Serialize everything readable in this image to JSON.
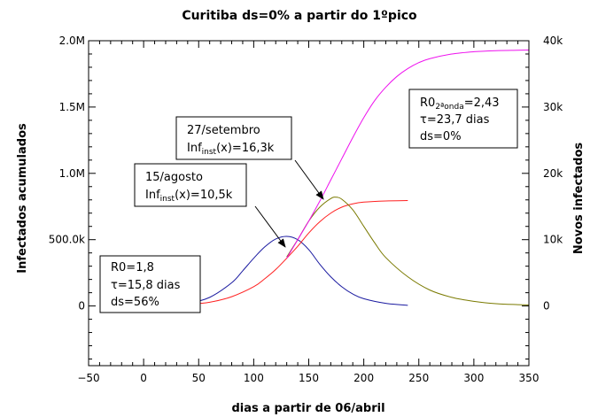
{
  "chart_data": {
    "type": "line",
    "title": "Curitiba ds=0% a partir do 1ºpico",
    "xlabel": "dias a partir de 06/abril",
    "ylabel_left": "Infectados acumulados",
    "ylabel_right": "Novos infectados",
    "xlim": [
      -50,
      350
    ],
    "ylim_left": [
      -450000,
      2000000
    ],
    "ylim_right": [
      -9000,
      40000
    ],
    "xticks": [
      -50,
      0,
      50,
      100,
      150,
      200,
      250,
      300,
      350
    ],
    "xtick_labels": [
      "−50",
      "0",
      "50",
      "100",
      "150",
      "200",
      "250",
      "300",
      "350"
    ],
    "yticks_left": [
      0,
      500000,
      1000000,
      1500000,
      2000000
    ],
    "ytick_labels_left": [
      "0",
      "500.0k",
      "1.0M",
      "1.5M",
      "2.0M"
    ],
    "yticks_right": [
      0,
      10000,
      20000,
      30000,
      40000
    ],
    "ytick_labels_right": [
      "0",
      "10k",
      "20k",
      "30k",
      "40k"
    ],
    "grid": false,
    "legend": "none",
    "series": [
      {
        "color": "#1a1aa0",
        "axis": "right",
        "x": [
          0,
          20,
          40,
          60,
          80,
          90,
          100,
          110,
          120,
          130,
          140,
          150,
          160,
          170,
          180,
          190,
          200,
          220,
          240
        ],
        "y": [
          0,
          100,
          400,
          1300,
          3500,
          5300,
          7200,
          8900,
          10100,
          10500,
          10000,
          8500,
          6300,
          4400,
          2900,
          1800,
          1100,
          400,
          100
        ]
      },
      {
        "color": "#ff2020",
        "axis": "left",
        "x": [
          0,
          20,
          40,
          60,
          80,
          100,
          110,
          120,
          130,
          140,
          150,
          160,
          170,
          180,
          190,
          200,
          220,
          240
        ],
        "y": [
          0,
          4000,
          12000,
          28000,
          70000,
          145000,
          205000,
          275000,
          360000,
          450000,
          550000,
          635000,
          700000,
          745000,
          770000,
          783000,
          792000,
          795000
        ]
      },
      {
        "color": "#7a7a00",
        "axis": "right",
        "x": [
          130,
          140,
          150,
          160,
          170,
          175,
          180,
          190,
          200,
          210,
          220,
          240,
          260,
          280,
          300,
          320,
          340,
          350
        ],
        "y": [
          7400,
          10000,
          12800,
          14900,
          16200,
          16400,
          16100,
          14500,
          12000,
          9500,
          7300,
          4400,
          2400,
          1300,
          700,
          350,
          200,
          150
        ]
      },
      {
        "color": "#ee10ee",
        "axis": "left",
        "x": [
          130,
          140,
          150,
          160,
          170,
          180,
          190,
          200,
          210,
          220,
          230,
          240,
          250,
          260,
          280,
          300,
          320,
          340,
          350
        ],
        "y": [
          360000,
          500000,
          640000,
          790000,
          950000,
          1110000,
          1270000,
          1420000,
          1550000,
          1650000,
          1730000,
          1790000,
          1835000,
          1865000,
          1900000,
          1917000,
          1925000,
          1928000,
          1930000
        ]
      }
    ],
    "annotations": [
      {
        "lines": [
          {
            "main": "R0=1,8"
          },
          {
            "main": "τ=15,8 dias"
          },
          {
            "main": "ds=56%"
          }
        ]
      },
      {
        "lines": [
          {
            "main": "15/agosto"
          },
          {
            "main": "Inf",
            "sub": "inst",
            "tail": "(x)=10,5k"
          }
        ]
      },
      {
        "lines": [
          {
            "main": "27/setembro"
          },
          {
            "main": "Inf",
            "sub": "inst",
            "tail": "(x)=16,3k"
          }
        ]
      },
      {
        "lines": [
          {
            "main": "R0",
            "sub": "2ªonda",
            "tail": "=2,43"
          },
          {
            "main": "τ=23,7 dias"
          },
          {
            "main": "ds=0%"
          }
        ]
      }
    ]
  }
}
